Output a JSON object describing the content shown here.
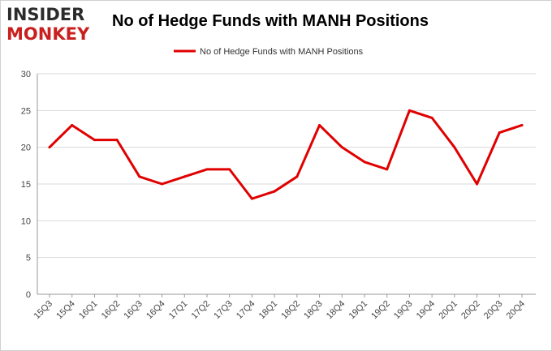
{
  "logo": {
    "line1": "INSIDER",
    "line2": "MONKEY"
  },
  "chart_data": {
    "type": "line",
    "title": "No of Hedge Funds with MANH Positions",
    "xlabel": "",
    "ylabel": "",
    "ylim": [
      0,
      30
    ],
    "yticks": [
      0,
      5,
      10,
      15,
      20,
      25,
      30
    ],
    "grid": true,
    "legend_position": "top-center",
    "categories": [
      "15Q3",
      "15Q4",
      "16Q1",
      "16Q2",
      "16Q3",
      "16Q4",
      "17Q1",
      "17Q2",
      "17Q3",
      "17Q4",
      "18Q1",
      "18Q2",
      "18Q3",
      "18Q4",
      "19Q1",
      "19Q2",
      "19Q3",
      "19Q4",
      "20Q1",
      "20Q2",
      "20Q3",
      "20Q4"
    ],
    "series": [
      {
        "name": "No of Hedge Funds with MANH Positions",
        "color": "#e00000",
        "values": [
          20,
          23,
          21,
          21,
          16,
          15,
          16,
          17,
          17,
          13,
          14,
          16,
          23,
          20,
          18,
          17,
          25,
          24,
          20,
          15,
          22,
          23
        ]
      }
    ]
  }
}
